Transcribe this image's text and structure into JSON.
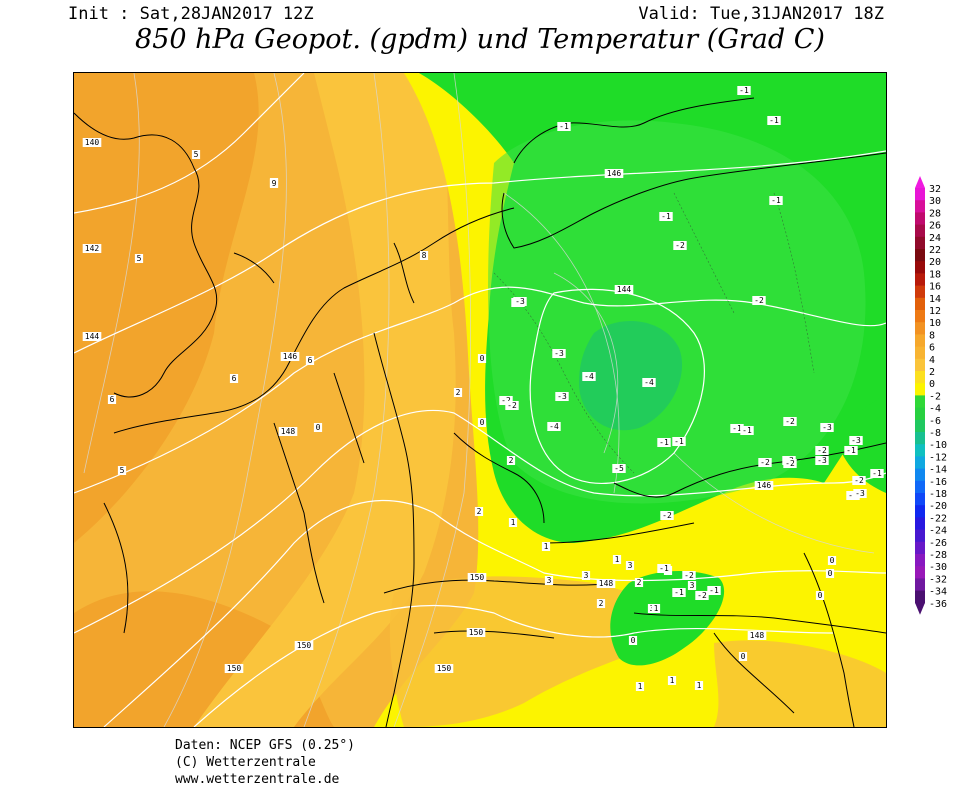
{
  "header": {
    "init_text": "Init : Sat,28JAN2017 12Z",
    "valid_text": "Valid: Tue,31JAN2017 18Z",
    "title": "850 hPa Geopot. (gpdm) und Temperatur (Grad C)"
  },
  "colors": {
    "warm_dark": "#f2a42c",
    "warm_mid": "#f6b538",
    "warm_light": "#fac43c",
    "yellow": "#fcf400",
    "green_light": "#3de246",
    "green": "#1fdc28",
    "green_core": "#22cc5a",
    "land_line": "#000000",
    "contour": "#ffffff"
  },
  "colorbar": {
    "labels": [
      "32",
      "30",
      "28",
      "26",
      "24",
      "22",
      "20",
      "18",
      "16",
      "14",
      "12",
      "10",
      "8",
      "6",
      "4",
      "2",
      "0",
      "-2",
      "-4",
      "-6",
      "-8",
      "-10",
      "-12",
      "-14",
      "-16",
      "-18",
      "-20",
      "-22",
      "-24",
      "-26",
      "-28",
      "-30",
      "-32",
      "-34",
      "-36"
    ],
    "colors": [
      "#e815d6",
      "#d80f9a",
      "#c00a6e",
      "#a80a4a",
      "#900a2a",
      "#7a0a10",
      "#980a0a",
      "#b81a0a",
      "#d03a0a",
      "#e2600a",
      "#ee7a14",
      "#f29222",
      "#f6a82c",
      "#f8b432",
      "#fac43a",
      "#fce020",
      "#fcf400",
      "#30d838",
      "#28d040",
      "#20c860",
      "#18c090",
      "#10c0c0",
      "#10a8e0",
      "#1088f0",
      "#1068f8",
      "#1048f8",
      "#1028f0",
      "#2818e0",
      "#4818d0",
      "#6818c8",
      "#8818c0",
      "#9818b8",
      "#7018a0",
      "#4a1070"
    ],
    "end_arrow": "#4a1070",
    "top_arrow": "#f01ae0"
  },
  "map_labels": {
    "geopotential": [
      "140",
      "142",
      "144",
      "146",
      "148",
      "150",
      "146",
      "144",
      "150",
      "148",
      "150",
      "148",
      "150",
      "150",
      "146"
    ],
    "temperature": [
      "5",
      "5",
      "6",
      "5",
      "6",
      "9",
      "5",
      "6",
      "8",
      "0",
      "0",
      "2",
      "0",
      "2",
      "-2",
      "-2",
      "-1",
      "-1",
      "-3",
      "-3",
      "-3",
      "-3",
      "-4",
      "-4",
      "-4",
      "-5",
      "-1",
      "-1",
      "-1",
      "-1",
      "-2",
      "-2",
      "-2",
      "-2",
      "-3",
      "-3",
      "-3",
      "-1",
      "-1",
      "-2",
      "-2",
      "-3",
      "-2",
      "-1",
      "-1",
      "-2",
      "-1",
      "-2",
      "2",
      "1",
      "1",
      "3",
      "1",
      "3",
      "2",
      "3",
      "2",
      "1",
      "3",
      "2",
      "3",
      "0",
      "0",
      "0",
      "1",
      "1",
      "1",
      "0",
      "0",
      "-2",
      "-1",
      "-1",
      "-1",
      "-2",
      "-3"
    ]
  },
  "footer": {
    "line1": "Daten: NCEP GFS (0.25°)",
    "line2": "(C) Wetterzentrale",
    "line3": "www.wetterzentrale.de"
  }
}
